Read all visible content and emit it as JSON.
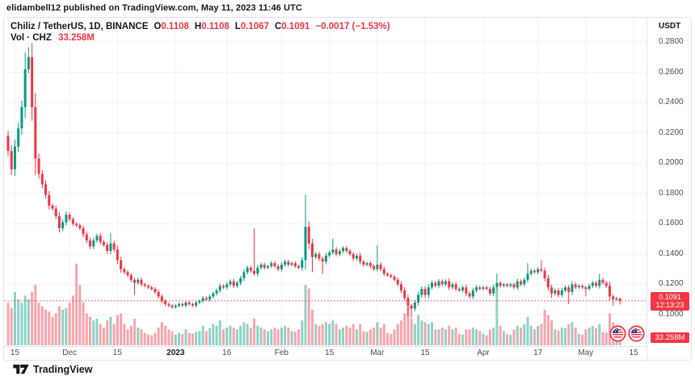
{
  "attribution": "elidambell12 published on TradingView.com, May 11, 2023 11:46 UTC",
  "legend": {
    "title": "Chiliz / TetherUS, 1D, BINANCE",
    "ohlc": [
      {
        "k": "O",
        "v": "0.1108"
      },
      {
        "k": "H",
        "v": "0.1108"
      },
      {
        "k": "L",
        "v": "0.1067"
      },
      {
        "k": "C",
        "v": "0.1091"
      }
    ],
    "change": "−0.0017 (−1.53%)",
    "volume_label": "Vol · CHZ",
    "volume_value": "33.258M"
  },
  "price_axis": {
    "unit": "USDT",
    "min": 0.1,
    "max": 0.28,
    "ticks": [
      "0.2800",
      "0.2600",
      "0.2400",
      "0.2200",
      "0.2000",
      "0.1800",
      "0.1600",
      "0.1400",
      "0.1200",
      "0.1000"
    ],
    "current_price_badge": {
      "price": "0.1091",
      "countdown": "12:13:23",
      "value": 0.1091
    },
    "volume_badge": "33.258M"
  },
  "time_axis": {
    "ticks": [
      {
        "label": "15",
        "i": 2
      },
      {
        "label": "Dec",
        "i": 18
      },
      {
        "label": "15",
        "i": 32
      },
      {
        "label": "2023",
        "i": 49,
        "bold": true
      },
      {
        "label": "16",
        "i": 64
      },
      {
        "label": "Feb",
        "i": 80
      },
      {
        "label": "15",
        "i": 94
      },
      {
        "label": "Mar",
        "i": 108
      },
      {
        "label": "15",
        "i": 122
      },
      {
        "label": "Apr",
        "i": 139
      },
      {
        "label": "17",
        "i": 155
      },
      {
        "label": "May",
        "i": 169
      },
      {
        "label": "15",
        "i": 183
      }
    ]
  },
  "events": {
    "icons": [
      "us-economic-event",
      "us-economic-event"
    ]
  },
  "branding": {
    "logo_text": "TradingView"
  },
  "colors": {
    "up": "#089981",
    "down": "#f23645",
    "accent_red": "#f23645",
    "text": "#131722",
    "axis_text": "#474c58",
    "grid": "#f0f3fa",
    "border": "#e0e3eb",
    "badge_bg": "#f23645",
    "flag_blue": "#2b3f8c"
  },
  "chart_data": {
    "type": "candlestick+volume",
    "title": "Chiliz / TetherUS, 1D, BINANCE",
    "symbol": "CHZ/USDT",
    "timeframe": "1D",
    "exchange": "BINANCE",
    "last": {
      "o": 0.1108,
      "h": 0.1108,
      "l": 0.1067,
      "c": 0.1091,
      "change": -0.0017,
      "change_pct": -1.53,
      "volume": "33.258M"
    },
    "ylabel": "USDT",
    "ylim": [
      0.1,
      0.28
    ],
    "grid": true,
    "start_date": "2022-11-13",
    "end_date": "2023-05-11",
    "note": "candles = [close, volume_in_millions, high_override?, low_override?]; open = previous close; 0 = auto wick",
    "first_open": 0.218,
    "volume_max": 230,
    "candles": [
      [
        0.208,
        120
      ],
      [
        0.196,
        105
      ],
      [
        0.211,
        150
      ],
      [
        0.223,
        130
      ],
      [
        0.237,
        120
      ],
      [
        0.262,
        140,
        0.273,
        0
      ],
      [
        0.27,
        130,
        0.2765,
        0
      ],
      [
        0.237,
        150
      ],
      [
        0.203,
        170,
        0,
        0.192
      ],
      [
        0.193,
        120
      ],
      [
        0.186,
        110
      ],
      [
        0.179,
        100
      ],
      [
        0.172,
        95
      ],
      [
        0.17,
        80
      ],
      [
        0.165,
        90
      ],
      [
        0.157,
        110
      ],
      [
        0.161,
        100
      ],
      [
        0.166,
        105
      ],
      [
        0.163,
        120
      ],
      [
        0.16,
        140
      ],
      [
        0.159,
        230
      ],
      [
        0.157,
        170
      ],
      [
        0.153,
        120
      ],
      [
        0.149,
        90
      ],
      [
        0.145,
        80
      ],
      [
        0.149,
        70
      ],
      [
        0.152,
        75
      ],
      [
        0.148,
        60
      ],
      [
        0.146,
        50
      ],
      [
        0.142,
        70
      ],
      [
        0.147,
        80,
        0.154,
        0
      ],
      [
        0.143,
        60
      ],
      [
        0.136,
        85
      ],
      [
        0.13,
        90
      ],
      [
        0.128,
        60
      ],
      [
        0.126,
        45
      ],
      [
        0.123,
        55
      ],
      [
        0.121,
        75,
        0,
        0.113
      ],
      [
        0.123,
        50
      ],
      [
        0.12,
        45
      ],
      [
        0.119,
        35
      ],
      [
        0.118,
        30
      ],
      [
        0.117,
        28
      ],
      [
        0.115,
        35
      ],
      [
        0.112,
        50
      ],
      [
        0.109,
        65
      ],
      [
        0.107,
        55
      ],
      [
        0.106,
        45
      ],
      [
        0.105,
        40
      ],
      [
        0.106,
        30
      ],
      [
        0.107,
        35
      ],
      [
        0.106,
        32
      ],
      [
        0.108,
        45
      ],
      [
        0.107,
        35
      ],
      [
        0.106,
        33
      ],
      [
        0.108,
        38
      ],
      [
        0.109,
        40
      ],
      [
        0.111,
        55
      ],
      [
        0.11,
        40
      ],
      [
        0.112,
        48
      ],
      [
        0.114,
        60
      ],
      [
        0.116,
        55
      ],
      [
        0.119,
        70
      ],
      [
        0.118,
        45
      ],
      [
        0.12,
        50
      ],
      [
        0.122,
        55
      ],
      [
        0.119,
        50
      ],
      [
        0.121,
        45
      ],
      [
        0.124,
        55
      ],
      [
        0.128,
        65
      ],
      [
        0.131,
        60
      ],
      [
        0.129,
        50
      ],
      [
        0.127,
        75,
        0.157,
        0
      ],
      [
        0.131,
        55
      ],
      [
        0.133,
        50
      ],
      [
        0.131,
        45
      ],
      [
        0.132,
        40
      ],
      [
        0.134,
        45
      ],
      [
        0.132,
        50
      ],
      [
        0.13,
        45
      ],
      [
        0.133,
        50
      ],
      [
        0.135,
        55
      ],
      [
        0.133,
        50
      ],
      [
        0.134,
        40
      ],
      [
        0.132,
        38
      ],
      [
        0.131,
        45
      ],
      [
        0.136,
        70
      ],
      [
        0.158,
        170,
        0.179,
        0
      ],
      [
        0.147,
        160
      ],
      [
        0.138,
        100,
        0,
        0.128
      ],
      [
        0.14,
        60
      ],
      [
        0.137,
        55
      ],
      [
        0.135,
        60,
        0,
        0.127
      ],
      [
        0.139,
        65
      ],
      [
        0.141,
        60
      ],
      [
        0.143,
        70,
        0.15,
        0
      ],
      [
        0.14,
        60
      ],
      [
        0.142,
        45
      ],
      [
        0.144,
        50
      ],
      [
        0.142,
        55
      ],
      [
        0.14,
        50
      ],
      [
        0.137,
        60
      ],
      [
        0.139,
        45
      ],
      [
        0.135,
        60
      ],
      [
        0.133,
        40
      ],
      [
        0.134,
        38
      ],
      [
        0.132,
        45
      ],
      [
        0.13,
        50
      ],
      [
        0.133,
        65,
        0.146,
        0
      ],
      [
        0.13,
        50
      ],
      [
        0.127,
        60
      ],
      [
        0.126,
        35
      ],
      [
        0.125,
        32
      ],
      [
        0.123,
        45
      ],
      [
        0.12,
        60
      ],
      [
        0.116,
        70
      ],
      [
        0.111,
        90
      ],
      [
        0.106,
        110,
        0,
        0.099
      ],
      [
        0.104,
        75,
        0,
        0.098
      ],
      [
        0.108,
        60
      ],
      [
        0.113,
        85
      ],
      [
        0.117,
        70
      ],
      [
        0.113,
        65
      ],
      [
        0.118,
        60
      ],
      [
        0.121,
        65
      ],
      [
        0.119,
        45
      ],
      [
        0.122,
        45
      ],
      [
        0.12,
        50
      ],
      [
        0.122,
        45
      ],
      [
        0.118,
        55
      ],
      [
        0.12,
        45
      ],
      [
        0.117,
        50
      ],
      [
        0.116,
        32
      ],
      [
        0.118,
        30
      ],
      [
        0.114,
        45
      ],
      [
        0.112,
        45
      ],
      [
        0.116,
        50
      ],
      [
        0.118,
        45
      ],
      [
        0.117,
        40
      ],
      [
        0.118,
        32
      ],
      [
        0.117,
        28
      ],
      [
        0.114,
        45
      ],
      [
        0.118,
        50
      ],
      [
        0.121,
        160,
        0.127,
        0
      ],
      [
        0.119,
        55
      ],
      [
        0.12,
        40
      ],
      [
        0.119,
        32
      ],
      [
        0.12,
        30
      ],
      [
        0.118,
        45
      ],
      [
        0.122,
        55
      ],
      [
        0.12,
        50
      ],
      [
        0.123,
        60
      ],
      [
        0.127,
        80,
        0.134,
        0
      ],
      [
        0.129,
        55
      ],
      [
        0.128,
        45
      ],
      [
        0.13,
        55
      ],
      [
        0.129,
        60,
        0.136,
        0
      ],
      [
        0.124,
        100
      ],
      [
        0.118,
        85
      ],
      [
        0.114,
        70,
        0,
        0.111
      ],
      [
        0.116,
        45
      ],
      [
        0.113,
        42
      ],
      [
        0.116,
        50
      ],
      [
        0.118,
        48
      ],
      [
        0.115,
        60,
        0,
        0.107
      ],
      [
        0.12,
        65
      ],
      [
        0.118,
        50
      ],
      [
        0.119,
        32
      ],
      [
        0.118,
        30
      ],
      [
        0.117,
        45,
        0,
        0.112
      ],
      [
        0.119,
        50
      ],
      [
        0.121,
        55
      ],
      [
        0.119,
        48
      ],
      [
        0.123,
        60,
        0.127,
        0
      ],
      [
        0.121,
        38
      ],
      [
        0.119,
        36
      ],
      [
        0.112,
        90
      ],
      [
        0.11,
        65,
        0,
        0.106
      ],
      [
        0.1108,
        50
      ],
      [
        0.1091,
        33.258,
        0.1108,
        0.1067
      ]
    ]
  }
}
